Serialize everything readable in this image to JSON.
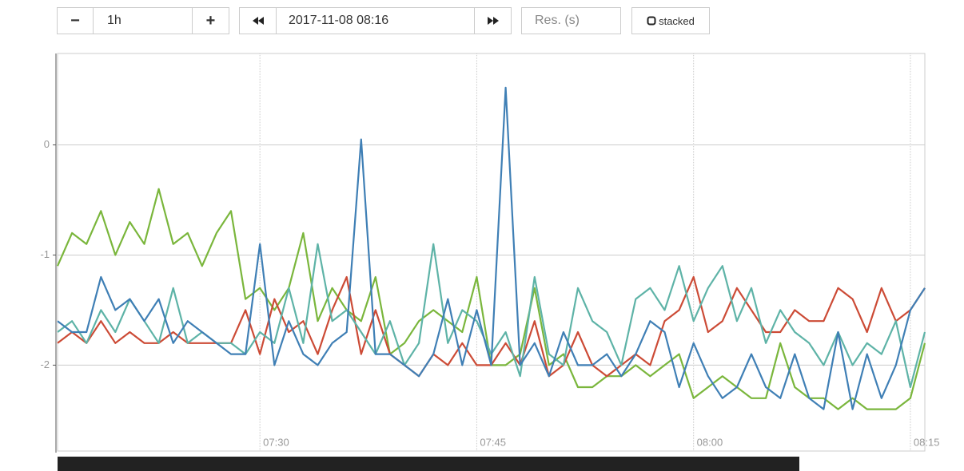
{
  "controls": {
    "range_minus": "−",
    "range": "1h",
    "range_plus": "+",
    "end_time": "2017-11-08 08:16",
    "resolution_placeholder": "Res. (s)",
    "stacked": "stacked"
  },
  "chart_data": {
    "type": "line",
    "x": [
      "07:16",
      "07:17",
      "07:18",
      "07:19",
      "07:20",
      "07:21",
      "07:22",
      "07:23",
      "07:24",
      "07:25",
      "07:26",
      "07:27",
      "07:28",
      "07:29",
      "07:30",
      "07:31",
      "07:32",
      "07:33",
      "07:34",
      "07:35",
      "07:36",
      "07:37",
      "07:38",
      "07:39",
      "07:40",
      "07:41",
      "07:42",
      "07:43",
      "07:44",
      "07:45",
      "07:46",
      "07:47",
      "07:48",
      "07:49",
      "07:50",
      "07:51",
      "07:52",
      "07:53",
      "07:54",
      "07:55",
      "07:56",
      "07:57",
      "07:58",
      "07:59",
      "08:00",
      "08:01",
      "08:02",
      "08:03",
      "08:04",
      "08:05",
      "08:06",
      "08:07",
      "08:08",
      "08:09",
      "08:10",
      "08:11",
      "08:12",
      "08:13",
      "08:14",
      "08:15",
      "08:16"
    ],
    "xticks": [
      "07:30",
      "07:45",
      "08:00",
      "08:15"
    ],
    "ylim": [
      -2.78,
      0.83
    ],
    "yticks": [
      -2,
      -1,
      0
    ],
    "grid": true,
    "series": [
      {
        "color": "#7ab63c",
        "values": [
          -1.1,
          -0.8,
          -0.9,
          -0.6,
          -1.0,
          -0.7,
          -0.9,
          -0.4,
          -0.9,
          -0.8,
          -1.1,
          -0.8,
          -0.6,
          -1.4,
          -1.3,
          -1.5,
          -1.3,
          -0.8,
          -1.6,
          -1.3,
          -1.5,
          -1.6,
          -1.2,
          -1.9,
          -1.8,
          -1.6,
          -1.5,
          -1.6,
          -1.7,
          -1.2,
          -2.0,
          -2.0,
          -1.9,
          -1.3,
          -2.0,
          -1.9,
          -2.2,
          -2.2,
          -2.1,
          -2.1,
          -2.0,
          -2.1,
          -2.0,
          -1.9,
          -2.3,
          -2.2,
          -2.1,
          -2.2,
          -2.3,
          -2.3,
          -1.8,
          -2.2,
          -2.3,
          -2.3,
          -2.4,
          -2.3,
          -2.4,
          -2.4,
          -2.4,
          -2.3,
          -1.8
        ]
      },
      {
        "color": "#cc4b36",
        "values": [
          -1.8,
          -1.7,
          -1.8,
          -1.6,
          -1.8,
          -1.7,
          -1.8,
          -1.8,
          -1.7,
          -1.8,
          -1.8,
          -1.8,
          -1.8,
          -1.5,
          -1.9,
          -1.4,
          -1.7,
          -1.6,
          -1.9,
          -1.5,
          -1.2,
          -1.9,
          -1.5,
          -1.9,
          -2.0,
          -2.1,
          -1.9,
          -2.0,
          -1.8,
          -2.0,
          -2.0,
          -1.8,
          -2.0,
          -1.6,
          -2.1,
          -2.0,
          -1.7,
          -2.0,
          -2.1,
          -2.0,
          -1.9,
          -2.0,
          -1.6,
          -1.5,
          -1.2,
          -1.7,
          -1.6,
          -1.3,
          -1.5,
          -1.7,
          -1.7,
          -1.5,
          -1.6,
          -1.6,
          -1.3,
          -1.4,
          -1.7,
          -1.3,
          -1.6,
          -1.5,
          -1.3
        ]
      },
      {
        "color": "#5eb3a7",
        "values": [
          -1.7,
          -1.6,
          -1.8,
          -1.5,
          -1.7,
          -1.4,
          -1.6,
          -1.8,
          -1.3,
          -1.8,
          -1.7,
          -1.8,
          -1.8,
          -1.9,
          -1.7,
          -1.8,
          -1.3,
          -1.8,
          -0.9,
          -1.6,
          -1.5,
          -1.7,
          -1.9,
          -1.6,
          -2.0,
          -1.8,
          -0.9,
          -1.8,
          -1.5,
          -1.6,
          -1.9,
          -1.7,
          -2.1,
          -1.2,
          -1.9,
          -2.0,
          -1.3,
          -1.6,
          -1.7,
          -2.0,
          -1.4,
          -1.3,
          -1.5,
          -1.1,
          -1.6,
          -1.3,
          -1.1,
          -1.6,
          -1.3,
          -1.8,
          -1.5,
          -1.7,
          -1.8,
          -2.0,
          -1.7,
          -2.0,
          -1.8,
          -1.9,
          -1.6,
          -2.2,
          -1.7
        ]
      },
      {
        "color": "#3f7fb5",
        "values": [
          -1.6,
          -1.7,
          -1.7,
          -1.2,
          -1.5,
          -1.4,
          -1.6,
          -1.4,
          -1.8,
          -1.6,
          -1.7,
          -1.8,
          -1.9,
          -1.9,
          -0.9,
          -2.0,
          -1.6,
          -1.9,
          -2.0,
          -1.8,
          -1.7,
          0.05,
          -1.9,
          -1.9,
          -2.0,
          -2.1,
          -1.9,
          -1.4,
          -2.0,
          -1.5,
          -2.0,
          0.52,
          -2.0,
          -1.8,
          -2.1,
          -1.7,
          -2.0,
          -2.0,
          -1.9,
          -2.1,
          -1.9,
          -1.6,
          -1.7,
          -2.2,
          -1.8,
          -2.1,
          -2.3,
          -2.2,
          -1.9,
          -2.2,
          -2.3,
          -1.9,
          -2.3,
          -2.4,
          -1.7,
          -2.4,
          -1.9,
          -2.3,
          -2.0,
          -1.5,
          -1.3
        ]
      }
    ]
  }
}
